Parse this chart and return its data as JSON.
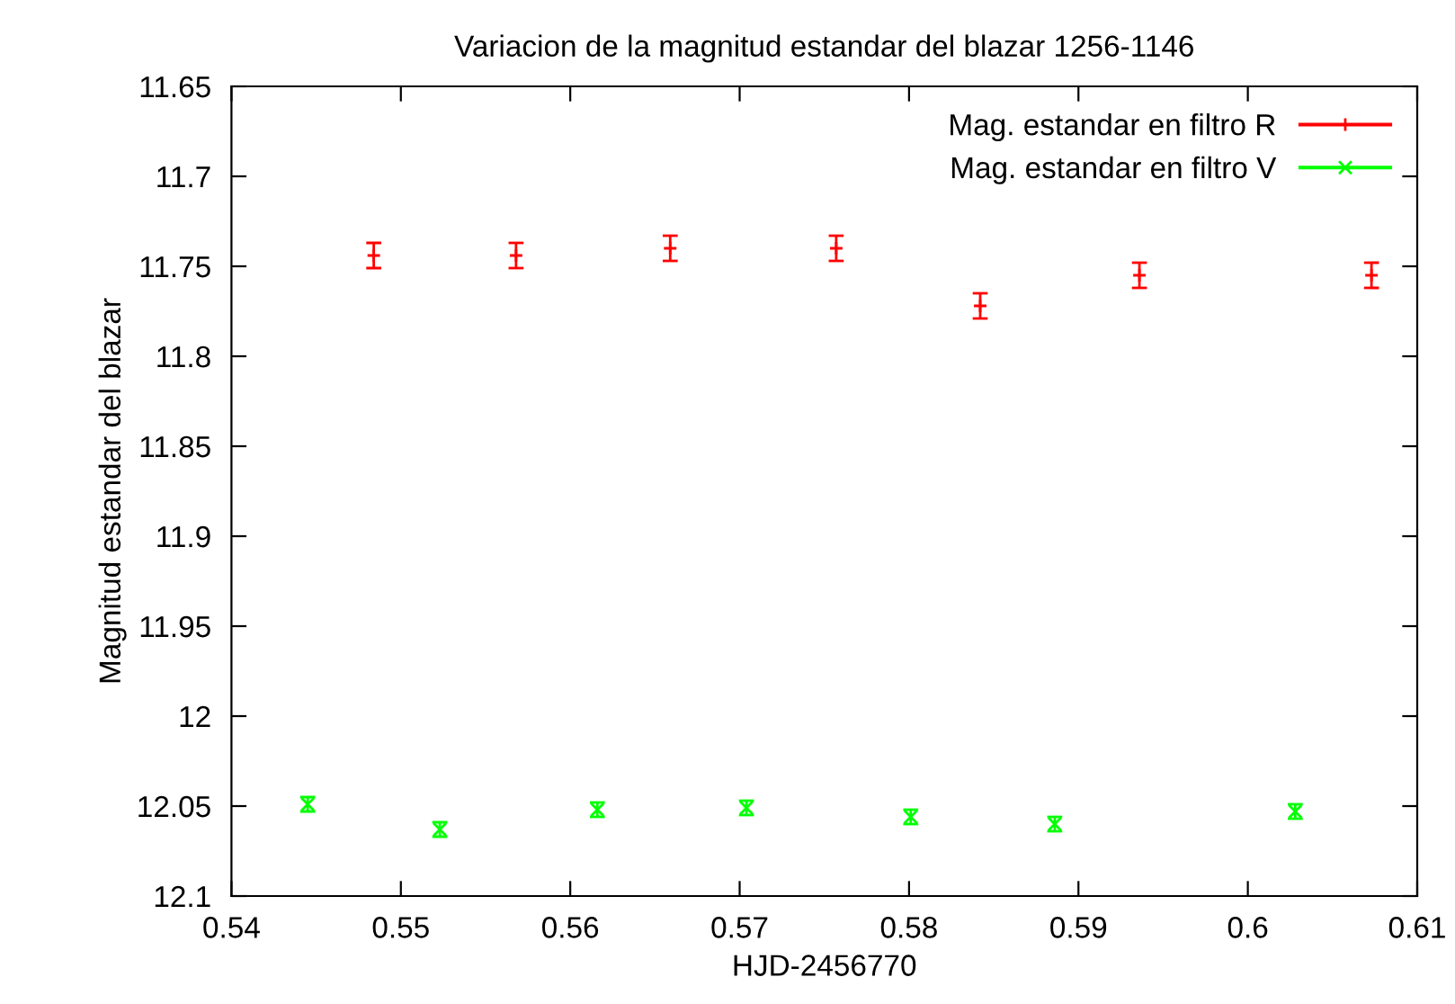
{
  "chart_data": {
    "type": "scatter",
    "title": "Variacion de la magnitud estandar del blazar 1256-1146",
    "xlabel": "HJD-2456770",
    "ylabel": "Magnitud estandar del blazar",
    "series": [
      {
        "name": "Mag. estandar en filtro R",
        "color": "#ff0000",
        "marker": "cross",
        "x": [
          0.5484,
          0.5568,
          0.5659,
          0.5757,
          0.5842,
          0.5936,
          0.6073
        ],
        "values": [
          11.744,
          11.744,
          11.74,
          11.74,
          11.772,
          11.755,
          11.755
        ],
        "errors": [
          0.007,
          0.007,
          0.007,
          0.007,
          0.007,
          0.007,
          0.007
        ]
      },
      {
        "name": "Mag. estandar en filtro V",
        "color": "#00ff00",
        "marker": "x",
        "x": [
          0.5445,
          0.5523,
          0.5616,
          0.5704,
          0.5801,
          0.5886,
          0.6028
        ],
        "values": [
          12.049,
          12.063,
          12.052,
          12.051,
          12.056,
          12.06,
          12.053
        ],
        "errors": [
          0.004,
          0.004,
          0.004,
          0.004,
          0.004,
          0.004,
          0.004
        ]
      }
    ],
    "xlim": [
      0.54,
      0.61
    ],
    "xticks": [
      0.54,
      0.55,
      0.56,
      0.57,
      0.58,
      0.59,
      0.6,
      0.61
    ],
    "ylim": [
      12.1,
      11.65
    ],
    "yticks": [
      11.65,
      11.7,
      11.75,
      11.8,
      11.85,
      11.9,
      11.95,
      12,
      12.05,
      12.1
    ],
    "grid": false,
    "legend": "top right"
  }
}
